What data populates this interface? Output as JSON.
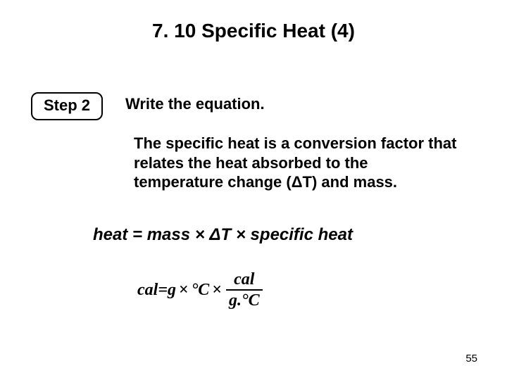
{
  "title": "7. 10 Specific Heat (4)",
  "step": {
    "label": "Step 2"
  },
  "instruction": "Write the equation.",
  "body": "The specific heat is a conversion factor that relates the heat absorbed to the temperature change (ΔT) and mass.",
  "heat_equation": "heat = mass × ΔT × specific heat",
  "unit_equation": {
    "lhs": "cal",
    "eq": " = ",
    "t1": "g",
    "times": "×",
    "t2": "°C",
    "frac_num": "cal",
    "frac_den": "g.°C"
  },
  "page_number": "55",
  "colors": {
    "bg": "#ffffff",
    "text": "#000000",
    "border": "#000000"
  }
}
